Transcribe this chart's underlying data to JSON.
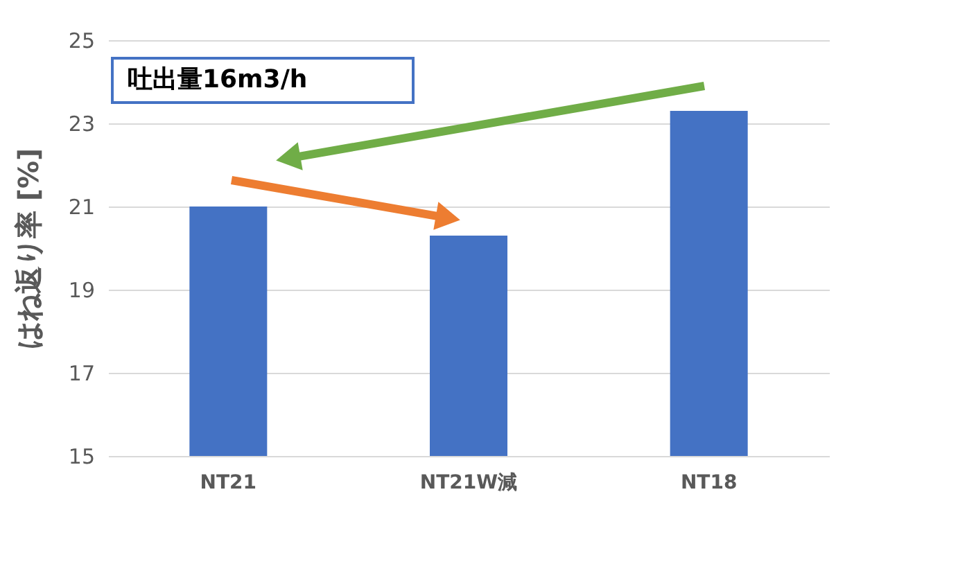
{
  "chart_data": {
    "type": "bar",
    "ylabel": "はね返り率 [%]",
    "categories": [
      "NT21",
      "NT21W減",
      "NT18"
    ],
    "values": [
      21.0,
      20.3,
      23.3
    ],
    "color": "#4472c4",
    "ylim": [
      15,
      25
    ],
    "yticks": [
      15,
      17,
      19,
      21,
      23,
      25
    ],
    "grid": "y",
    "annotations": [
      "吐出量16m3/h"
    ]
  }
}
